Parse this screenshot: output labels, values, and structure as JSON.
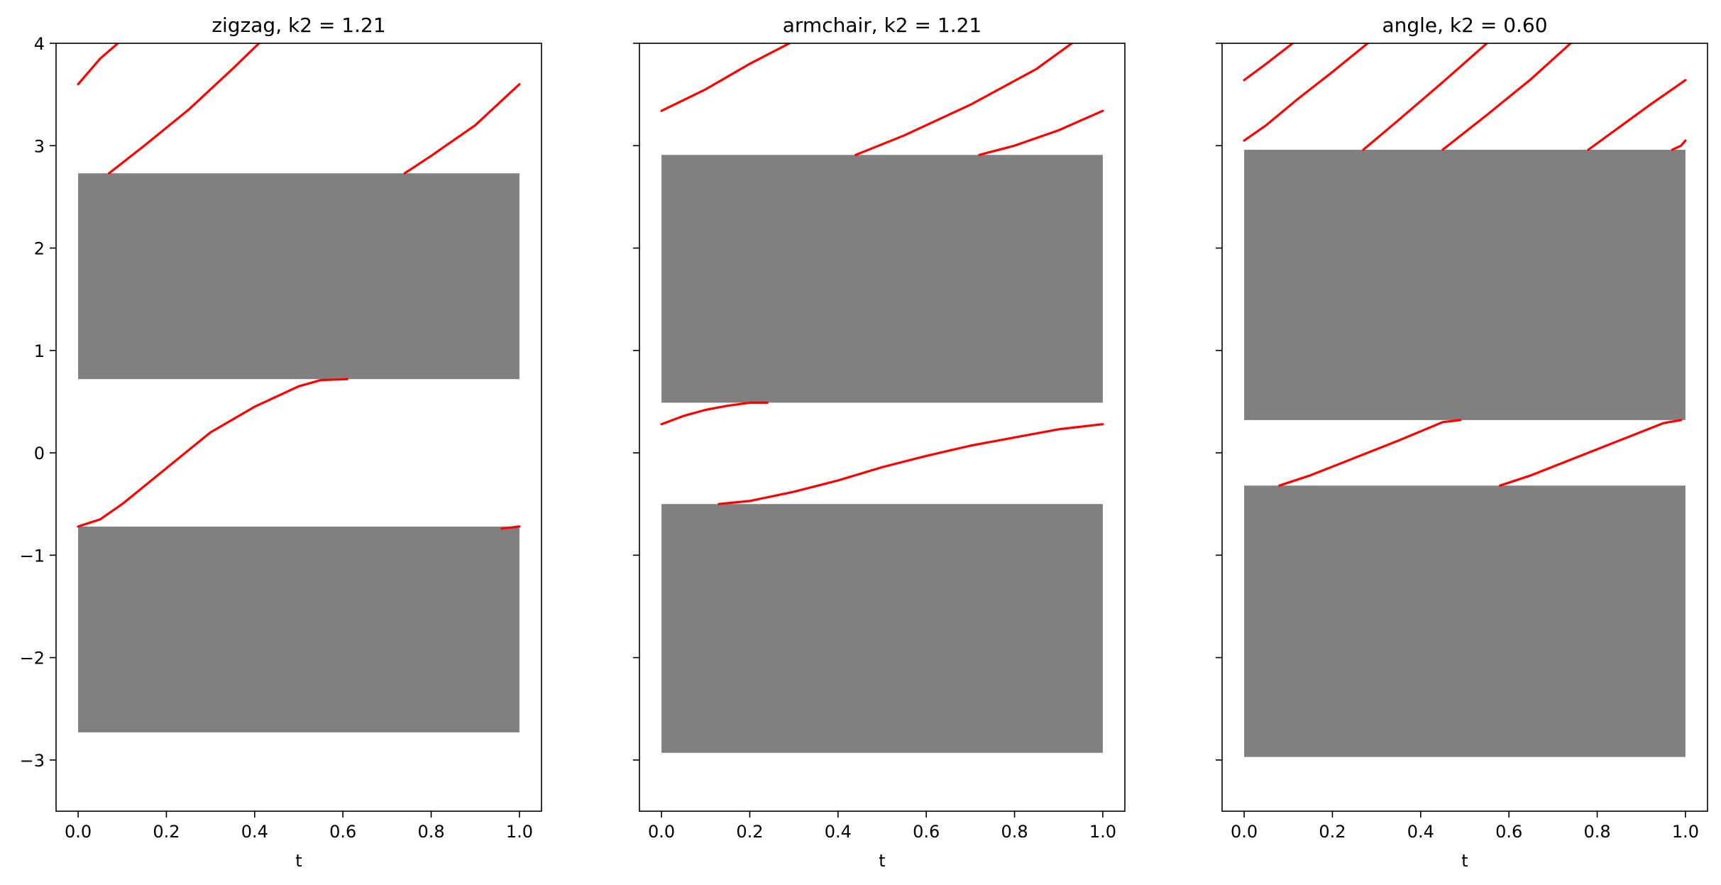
{
  "figure": {
    "background": "#ffffff"
  },
  "chart_data": [
    {
      "type": "line",
      "title": "zigzag, k2 = 1.21",
      "xlabel": "t",
      "ylabel": "",
      "xlim": [
        -0.05,
        1.05
      ],
      "ylim": [
        -3.5,
        4.0
      ],
      "xticks": [
        "0.0",
        "0.2",
        "0.4",
        "0.6",
        "0.8",
        "1.0"
      ],
      "yticks": [
        "4",
        "3",
        "2",
        "1",
        "0",
        "−1",
        "−2",
        "−3"
      ],
      "grid": false,
      "band_color": "#808080",
      "line_color": "#ff0000",
      "gaps": [
        {
          "t0": 0.0,
          "t1": 1.0,
          "y0": 0.72,
          "y1": 2.73
        },
        {
          "t0": 0.0,
          "t1": 1.0,
          "y0": -2.73,
          "y1": -0.72
        }
      ],
      "series": [
        {
          "x": [
            0.0,
            0.05,
            0.09
          ],
          "y": [
            3.6,
            3.85,
            4.0
          ]
        },
        {
          "x": [
            0.07,
            0.15,
            0.25,
            0.35,
            0.41
          ],
          "y": [
            2.73,
            3.0,
            3.35,
            3.75,
            4.0
          ]
        },
        {
          "x": [
            0.74,
            0.8,
            0.9,
            1.0
          ],
          "y": [
            2.73,
            2.9,
            3.2,
            3.6
          ]
        },
        {
          "x": [
            0.0,
            0.05,
            0.1,
            0.2,
            0.3,
            0.4,
            0.5,
            0.55,
            0.61
          ],
          "y": [
            -0.72,
            -0.65,
            -0.5,
            -0.15,
            0.2,
            0.45,
            0.65,
            0.71,
            0.72
          ]
        },
        {
          "x": [
            0.96,
            0.98,
            1.0
          ],
          "y": [
            -0.74,
            -0.73,
            -0.72
          ]
        }
      ]
    },
    {
      "type": "line",
      "title": "armchair, k2 = 1.21",
      "xlabel": "t",
      "ylabel": "",
      "xlim": [
        -0.05,
        1.05
      ],
      "ylim": [
        -3.5,
        4.0
      ],
      "xticks": [
        "0.0",
        "0.2",
        "0.4",
        "0.6",
        "0.8",
        "1.0"
      ],
      "yticks": [],
      "grid": false,
      "band_color": "#808080",
      "line_color": "#ff0000",
      "gaps": [
        {
          "t0": 0.0,
          "t1": 1.0,
          "y0": 0.49,
          "y1": 2.91
        },
        {
          "t0": 0.0,
          "t1": 1.0,
          "y0": -2.93,
          "y1": -0.5
        }
      ],
      "series": [
        {
          "x": [
            0.0,
            0.1,
            0.2,
            0.29
          ],
          "y": [
            3.34,
            3.55,
            3.8,
            4.0
          ]
        },
        {
          "x": [
            0.44,
            0.55,
            0.7,
            0.85,
            0.93
          ],
          "y": [
            2.91,
            3.1,
            3.4,
            3.75,
            4.0
          ]
        },
        {
          "x": [
            0.72,
            0.8,
            0.9,
            1.0
          ],
          "y": [
            2.91,
            3.0,
            3.15,
            3.34
          ]
        },
        {
          "x": [
            0.0,
            0.05,
            0.1,
            0.15,
            0.2,
            0.24
          ],
          "y": [
            0.28,
            0.36,
            0.42,
            0.46,
            0.49,
            0.49
          ]
        },
        {
          "x": [
            0.13,
            0.2,
            0.3,
            0.4,
            0.5,
            0.6,
            0.7,
            0.8,
            0.9,
            1.0
          ],
          "y": [
            -0.5,
            -0.47,
            -0.38,
            -0.27,
            -0.14,
            -0.03,
            0.07,
            0.15,
            0.23,
            0.28
          ]
        }
      ]
    },
    {
      "type": "line",
      "title": "angle, k2 = 0.60",
      "xlabel": "t",
      "ylabel": "",
      "xlim": [
        -0.05,
        1.05
      ],
      "ylim": [
        -3.5,
        4.0
      ],
      "xticks": [
        "0.0",
        "0.2",
        "0.4",
        "0.6",
        "0.8",
        "1.0"
      ],
      "yticks": [],
      "grid": false,
      "band_color": "#808080",
      "line_color": "#ff0000",
      "gaps": [
        {
          "t0": 0.0,
          "t1": 1.0,
          "y0": 0.32,
          "y1": 2.96
        },
        {
          "t0": 0.0,
          "t1": 1.0,
          "y0": -2.97,
          "y1": -0.32
        }
      ],
      "series": [
        {
          "x": [
            0.0,
            0.05,
            0.11
          ],
          "y": [
            3.64,
            3.8,
            4.0
          ]
        },
        {
          "x": [
            0.0,
            0.05,
            0.12,
            0.2,
            0.28
          ],
          "y": [
            3.05,
            3.2,
            3.45,
            3.72,
            4.0
          ]
        },
        {
          "x": [
            0.27,
            0.35,
            0.45,
            0.55
          ],
          "y": [
            2.96,
            3.25,
            3.62,
            4.0
          ]
        },
        {
          "x": [
            0.45,
            0.55,
            0.65,
            0.74
          ],
          "y": [
            2.96,
            3.3,
            3.65,
            4.0
          ]
        },
        {
          "x": [
            0.78,
            0.85,
            0.92,
            1.0
          ],
          "y": [
            2.96,
            3.18,
            3.4,
            3.64
          ]
        },
        {
          "x": [
            0.97,
            0.99,
            1.0
          ],
          "y": [
            2.96,
            3.0,
            3.05
          ]
        },
        {
          "x": [
            0.08,
            0.15,
            0.25,
            0.35,
            0.45,
            0.49
          ],
          "y": [
            -0.32,
            -0.22,
            -0.05,
            0.12,
            0.3,
            0.32
          ]
        },
        {
          "x": [
            0.58,
            0.65,
            0.75,
            0.85,
            0.95,
            0.99
          ],
          "y": [
            -0.32,
            -0.22,
            -0.05,
            0.12,
            0.29,
            0.32
          ]
        }
      ]
    }
  ]
}
